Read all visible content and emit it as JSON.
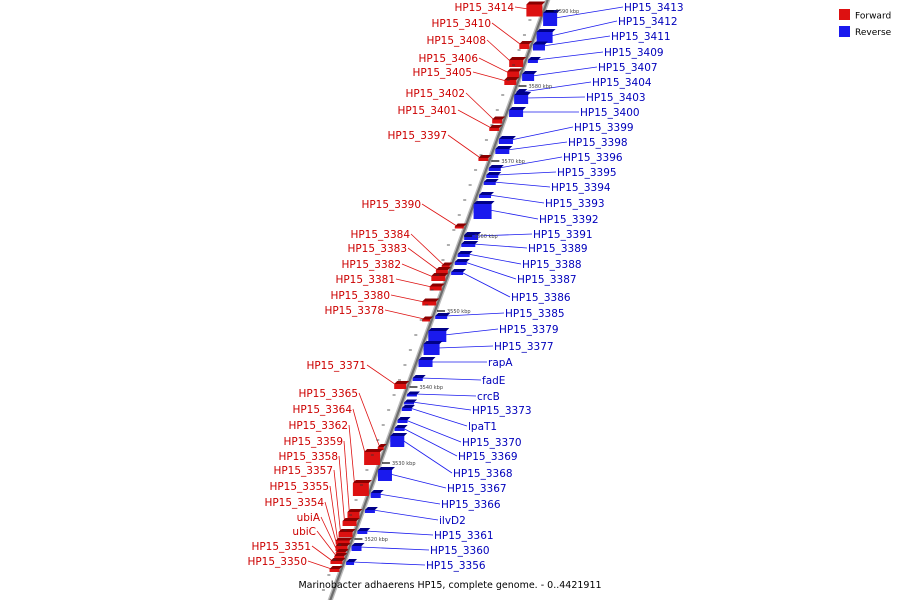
{
  "colors": {
    "forward": "#dd1111",
    "forward_dark": "#8a0000",
    "reverse": "#1a1aee",
    "reverse_dark": "#000088",
    "backbone": "#8a8a8a",
    "label_forward": "#cc0000",
    "label_reverse": "#0000bb"
  },
  "legend": {
    "forward_label": "Forward",
    "reverse_label": "Reverse"
  },
  "caption": "Marinobacter adhaerens HP15, complete genome. - 0..4421911",
  "ticks": [
    "3590 kbp",
    "3580 kbp",
    "3570 kbp",
    "3560 kbp",
    "3550 kbp",
    "3540 kbp",
    "3530 kbp",
    "3520 kbp"
  ],
  "forward_genes": [
    "HP15_3414",
    "HP15_3410",
    "HP15_3408",
    "HP15_3406",
    "HP15_3405",
    "HP15_3402",
    "HP15_3401",
    "HP15_3397",
    "HP15_3390",
    "HP15_3384",
    "HP15_3383",
    "HP15_3382",
    "HP15_3381",
    "HP15_3380",
    "HP15_3378",
    "HP15_3371",
    "HP15_3365",
    "HP15_3364",
    "HP15_3362",
    "HP15_3359",
    "HP15_3358",
    "HP15_3357",
    "HP15_3355",
    "HP15_3354",
    "ubiA",
    "ubiC",
    "HP15_3351",
    "HP15_3350"
  ],
  "reverse_genes": [
    "HP15_3413",
    "HP15_3412",
    "HP15_3411",
    "HP15_3409",
    "HP15_3407",
    "HP15_3404",
    "HP15_3403",
    "HP15_3400",
    "HP15_3399",
    "HP15_3398",
    "HP15_3396",
    "HP15_3395",
    "HP15_3394",
    "HP15_3393",
    "HP15_3392",
    "HP15_3391",
    "HP15_3389",
    "HP15_3388",
    "HP15_3387",
    "HP15_3386",
    "HP15_3385",
    "HP15_3379",
    "HP15_3377",
    "rapA",
    "fadE",
    "crcB",
    "HP15_3373",
    "lpaT1",
    "HP15_3370",
    "HP15_3369",
    "HP15_3368",
    "HP15_3367",
    "HP15_3366",
    "ilvD2",
    "HP15_3361",
    "HP15_3360",
    "HP15_3356"
  ]
}
